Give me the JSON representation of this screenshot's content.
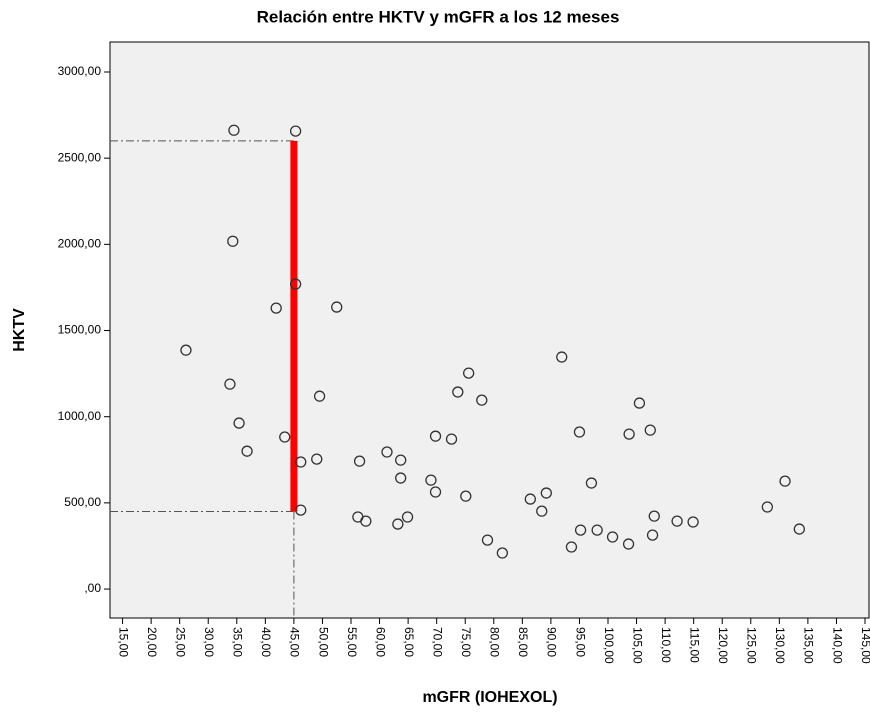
{
  "chart_data": {
    "type": "scatter",
    "title": "Relación entre HKTV y mGFR a los 12 meses",
    "xlabel": "mGFR (IOHEXOL)",
    "ylabel": "HKTV",
    "x": [
      26.1,
      34.5,
      34.3,
      33.8,
      35.4,
      36.8,
      41.9,
      43.4,
      45.3,
      45.3,
      46.2,
      46.2,
      49.0,
      49.5,
      52.5,
      56.2,
      57.6,
      56.5,
      61.3,
      63.7,
      63.7,
      63.2,
      64.9,
      69.0,
      69.8,
      69.8,
      72.6,
      73.7,
      75.6,
      75.1,
      77.9,
      78.9,
      81.5,
      86.4,
      88.4,
      89.2,
      91.9,
      93.6,
      95.0,
      95.2,
      97.1,
      98.1,
      100.8,
      103.6,
      103.7,
      105.5,
      107.4,
      107.8,
      108.1,
      112.1,
      114.9,
      127.9,
      131.0,
      133.5
    ],
    "values": [
      1386,
      2662,
      2018,
      1189,
      963,
      800,
      1630,
      882,
      2657,
      1769,
      737,
      458,
      754,
      1119,
      1636,
      418,
      394,
      742,
      795,
      748,
      644,
      377,
      418,
      632,
      887,
      563,
      870,
      1143,
      1253,
      539,
      1096,
      284,
      209,
      522,
      452,
      557,
      1346,
      244,
      911,
      342,
      615,
      342,
      302,
      261,
      899,
      1079,
      922,
      313,
      423,
      394,
      389,
      476,
      626,
      348
    ],
    "color": "#333333",
    "background": "#f0f0f0",
    "xlim": [
      12.8,
      145.7
    ],
    "ylim": [
      -168,
      3174
    ],
    "xticks": [
      {
        "value": 15,
        "label": "15,00"
      },
      {
        "value": 20,
        "label": "20,00"
      },
      {
        "value": 25,
        "label": "25,00"
      },
      {
        "value": 30,
        "label": "30,00"
      },
      {
        "value": 35,
        "label": "35,00"
      },
      {
        "value": 40,
        "label": "40,00"
      },
      {
        "value": 45,
        "label": "45,00"
      },
      {
        "value": 50,
        "label": "50,00"
      },
      {
        "value": 55,
        "label": "55,00"
      },
      {
        "value": 60,
        "label": "60,00"
      },
      {
        "value": 65,
        "label": "65,00"
      },
      {
        "value": 70,
        "label": "70,00"
      },
      {
        "value": 75,
        "label": "75,00"
      },
      {
        "value": 80,
        "label": "80,00"
      },
      {
        "value": 85,
        "label": "85,00"
      },
      {
        "value": 90,
        "label": "90,00"
      },
      {
        "value": 95,
        "label": "95,00"
      },
      {
        "value": 100,
        "label": "100,00"
      },
      {
        "value": 105,
        "label": "105,00"
      },
      {
        "value": 110,
        "label": "110,00"
      },
      {
        "value": 115,
        "label": "115,00"
      },
      {
        "value": 120,
        "label": "120,00"
      },
      {
        "value": 125,
        "label": "125,00"
      },
      {
        "value": 130,
        "label": "130,00"
      },
      {
        "value": 135,
        "label": "135,00"
      },
      {
        "value": 140,
        "label": "140,00"
      },
      {
        "value": 145,
        "label": "145,00"
      }
    ],
    "yticks": [
      {
        "value": 0,
        "label": ",00"
      },
      {
        "value": 500,
        "label": "500,00"
      },
      {
        "value": 1000,
        "label": "1000,00"
      },
      {
        "value": 1500,
        "label": "1500,00"
      },
      {
        "value": 2000,
        "label": "2000,00"
      },
      {
        "value": 2500,
        "label": "2500,00"
      },
      {
        "value": 3000,
        "label": "3000,00"
      }
    ],
    "reference_lines": {
      "x": 45,
      "y": [
        450,
        2600
      ]
    },
    "highlight": {
      "x": 45,
      "y": [
        450,
        2600
      ],
      "color": "#ff0000"
    }
  }
}
